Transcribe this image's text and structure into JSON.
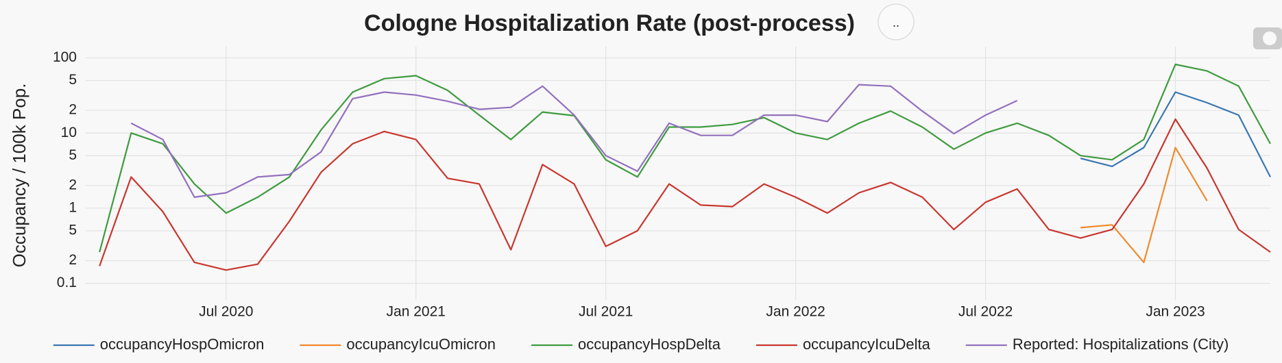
{
  "chart_data": {
    "type": "line",
    "title": "Cologne Hospitalization Rate (post-process)",
    "button": "..",
    "y_label": "Occupancy / 100k Pop.",
    "ylog": true,
    "grid": true,
    "legend": "bottom",
    "x": [
      "2020-03",
      "2020-04",
      "2020-05",
      "2020-06",
      "2020-07",
      "2020-08",
      "2020-09",
      "2020-10",
      "2020-11",
      "2020-12",
      "2021-01",
      "2021-02",
      "2021-03",
      "2021-04",
      "2021-05",
      "2021-06",
      "2021-07",
      "2021-08",
      "2021-09",
      "2021-10",
      "2021-11",
      "2021-12",
      "2022-01",
      "2022-02",
      "2022-03",
      "2022-04",
      "2022-05",
      "2022-06",
      "2022-07",
      "2022-08",
      "2022-09",
      "2022-10",
      "2022-11",
      "2022-12",
      "2023-01",
      "2023-02",
      "2023-03",
      "2023-04"
    ],
    "xlim": [
      "2020-02",
      "2023-04"
    ],
    "xticks": [
      {
        "value": "2020-07",
        "label": "Jul 2020"
      },
      {
        "value": "2021-01",
        "label": "Jan 2021"
      },
      {
        "value": "2021-07",
        "label": "Jul 2021"
      },
      {
        "value": "2022-01",
        "label": "Jan 2022"
      },
      {
        "value": "2022-07",
        "label": "Jul 2022"
      },
      {
        "value": "2023-01",
        "label": "Jan 2023"
      }
    ],
    "ylim": [
      0.06,
      130
    ],
    "yticks": [
      100,
      {
        "value": 50,
        "label": "5"
      },
      {
        "value": 20,
        "label": "2"
      },
      10,
      5,
      2,
      1,
      {
        "value": 0.5,
        "label": "5"
      },
      {
        "value": 0.2,
        "label": "2"
      },
      0.1
    ],
    "series": [
      {
        "name": "occupancyHospOmicron",
        "color": "#3a76b1",
        "values": [
          null,
          null,
          null,
          null,
          null,
          null,
          null,
          null,
          null,
          null,
          null,
          null,
          null,
          null,
          null,
          null,
          null,
          null,
          null,
          null,
          null,
          null,
          null,
          null,
          null,
          null,
          null,
          null,
          null,
          null,
          null,
          4.6,
          3.6,
          6.4,
          35,
          25.3,
          17.3,
          2.6
        ]
      },
      {
        "name": "occupancyIcuOmicron",
        "color": "#f0892c",
        "values": [
          null,
          null,
          null,
          null,
          null,
          null,
          null,
          null,
          null,
          null,
          null,
          null,
          null,
          null,
          null,
          null,
          null,
          null,
          null,
          null,
          null,
          null,
          null,
          null,
          null,
          null,
          null,
          null,
          null,
          null,
          null,
          0.55,
          0.6,
          0.19,
          6.4,
          1.25,
          null,
          null
        ]
      },
      {
        "name": "occupancyHospDelta",
        "color": "#3e9a3e",
        "values": [
          0.26,
          10,
          7.2,
          2.1,
          0.86,
          1.4,
          2.6,
          11,
          35,
          53,
          58,
          37,
          17.3,
          8.2,
          19,
          17,
          4.4,
          2.6,
          12,
          12,
          13,
          16,
          10,
          8.2,
          13.5,
          19.6,
          12,
          6.1,
          10,
          13.5,
          9.3,
          5,
          4.4,
          8.2,
          82,
          67,
          42,
          7.2
        ]
      },
      {
        "name": "occupancyIcuDelta",
        "color": "#c9362e",
        "values": [
          0.17,
          2.6,
          0.9,
          0.19,
          0.15,
          0.18,
          0.67,
          3,
          7.2,
          10.5,
          8.2,
          2.5,
          2.1,
          0.28,
          3.8,
          2.1,
          0.31,
          0.5,
          2.1,
          1.1,
          1.05,
          2.1,
          1.4,
          0.86,
          1.6,
          2.2,
          1.4,
          0.52,
          1.2,
          1.8,
          0.52,
          0.4,
          0.52,
          2.1,
          15.3,
          3.4,
          0.52,
          0.26
        ]
      },
      {
        "name": "Reported: Hospitalizations (City)",
        "color": "#9270bd",
        "values": [
          null,
          13.5,
          8.2,
          1.4,
          1.6,
          2.6,
          2.8,
          5.6,
          28.6,
          35,
          32,
          26.5,
          20.7,
          22,
          42,
          17.3,
          5,
          3.1,
          13.5,
          9.3,
          9.3,
          17.3,
          17.3,
          14.2,
          44,
          42,
          19.6,
          9.8,
          17.3,
          27,
          null,
          null,
          null,
          null,
          null,
          null,
          null,
          null
        ]
      }
    ]
  }
}
